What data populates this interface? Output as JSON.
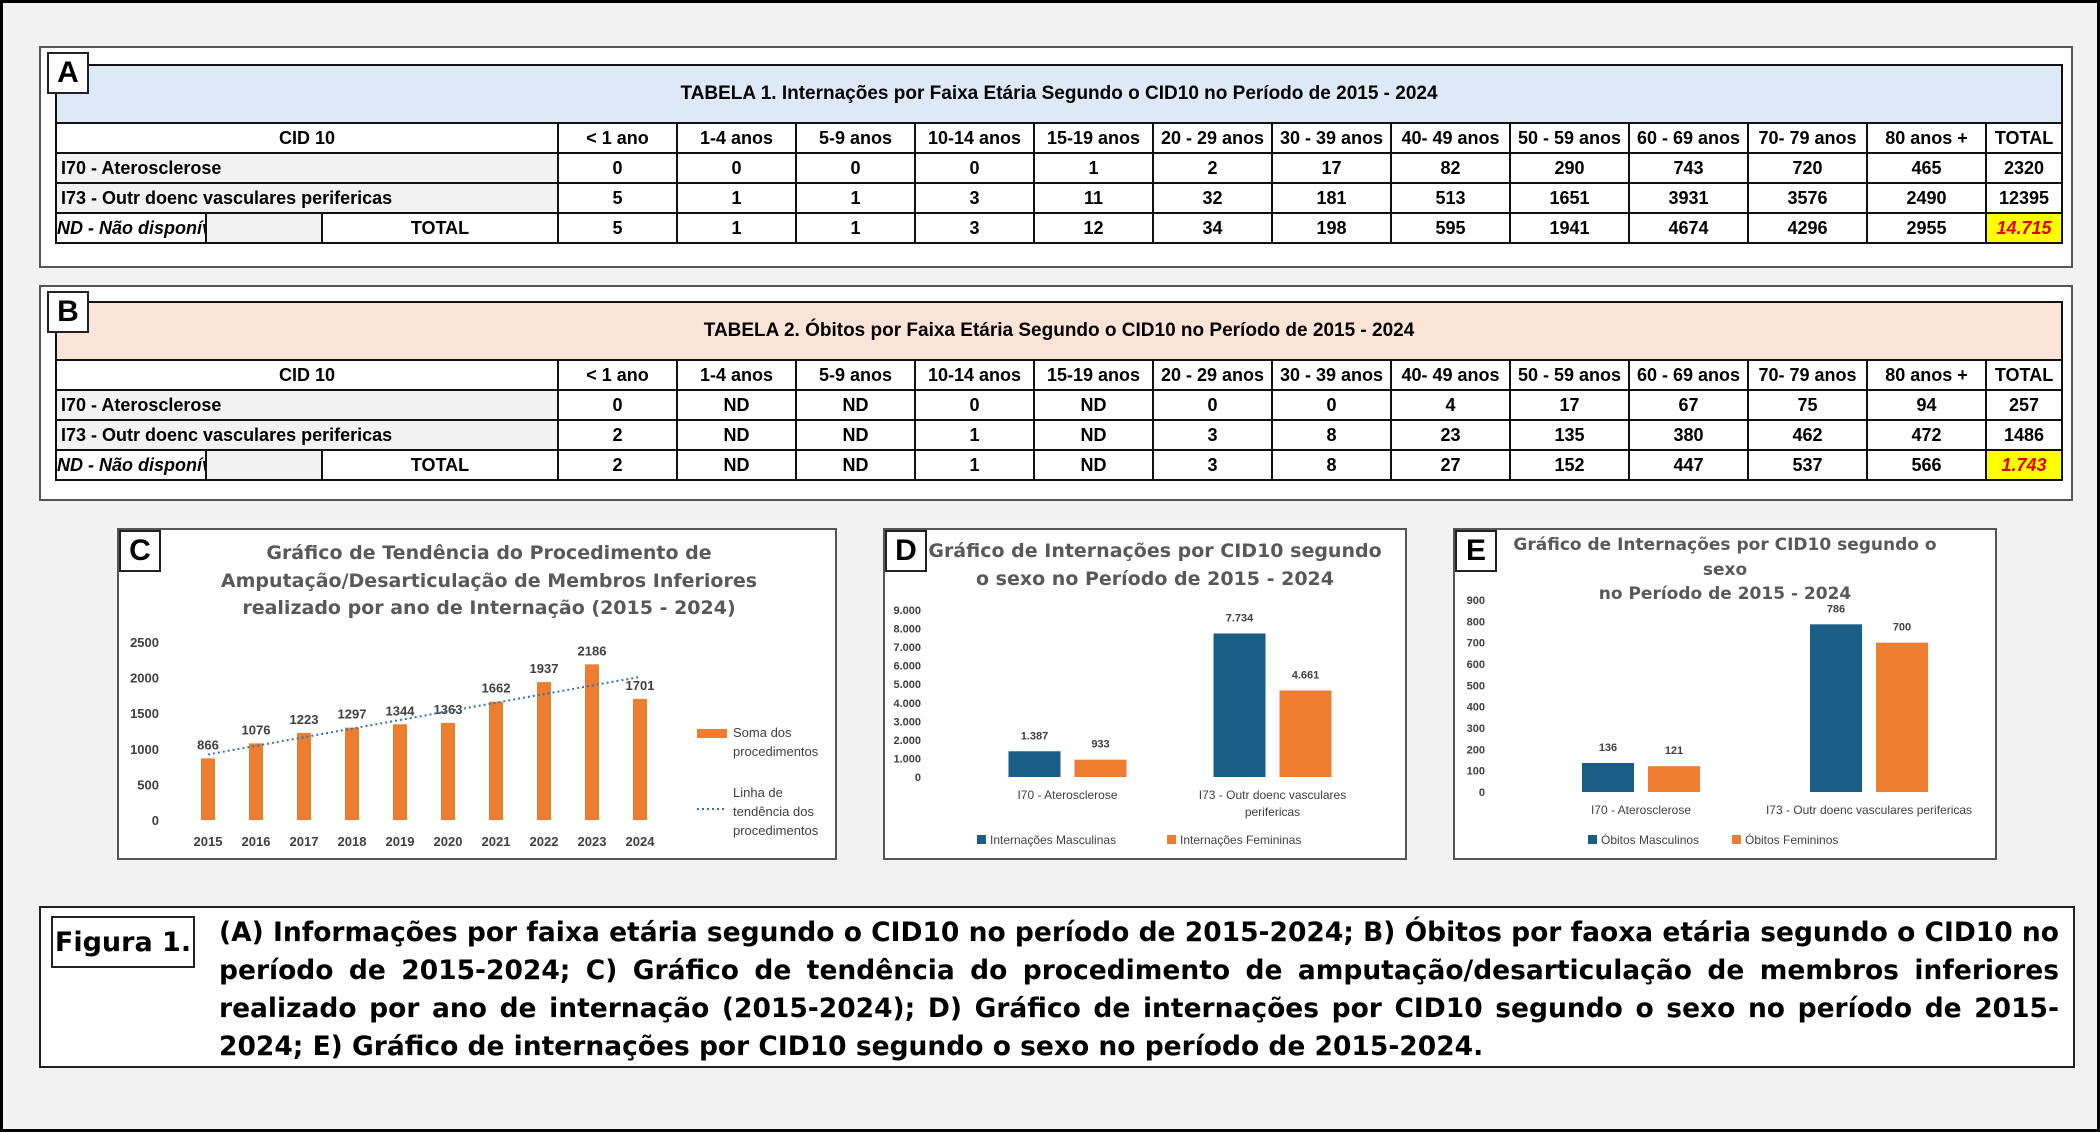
{
  "panels": {
    "a": "A",
    "b": "B",
    "c": "C",
    "d": "D",
    "e": "E"
  },
  "table1": {
    "title": "TABELA 1. Internações por Faixa Etária Segundo o CID10 no Período de 2015 - 2024",
    "header": [
      "CID 10",
      "< 1 ano",
      "1-4 anos",
      "5-9 anos",
      "10-14 anos",
      "15-19 anos",
      "20 - 29 anos",
      "30 - 39 anos",
      "40- 49 anos",
      "50 - 59 anos",
      "60 - 69 anos",
      "70- 79 anos",
      "80 anos +",
      "TOTAL"
    ],
    "rows": [
      [
        "I70 -  Aterosclerose",
        "0",
        "0",
        "0",
        "0",
        "1",
        "2",
        "17",
        "82",
        "290",
        "743",
        "720",
        "465",
        "2320"
      ],
      [
        "I73 - Outr doenc vasculares perifericas",
        "5",
        "1",
        "1",
        "3",
        "11",
        "32",
        "181",
        "513",
        "1651",
        "3931",
        "3576",
        "2490",
        "12395"
      ]
    ],
    "nd_label": "ND - Não disponível",
    "total_label": "TOTAL",
    "total_row": [
      "5",
      "1",
      "1",
      "3",
      "12",
      "34",
      "198",
      "595",
      "1941",
      "4674",
      "4296",
      "2955",
      "14.715"
    ]
  },
  "table2": {
    "title": "TABELA 2. Óbitos por Faixa Etária Segundo o CID10 no Período de 2015 - 2024",
    "header": [
      "CID 10",
      "< 1 ano",
      "1-4 anos",
      "5-9 anos",
      "10-14 anos",
      "15-19 anos",
      "20 - 29 anos",
      "30 - 39 anos",
      "40- 49 anos",
      "50 - 59 anos",
      "60 - 69 anos",
      "70- 79 anos",
      "80 anos +",
      "TOTAL"
    ],
    "rows": [
      [
        "I70 -  Aterosclerose",
        "0",
        "ND",
        "ND",
        "0",
        "ND",
        "0",
        "0",
        "4",
        "17",
        "67",
        "75",
        "94",
        "257"
      ],
      [
        "I73 - Outr doenc vasculares perifericas",
        "2",
        "ND",
        "ND",
        "1",
        "ND",
        "3",
        "8",
        "23",
        "135",
        "380",
        "462",
        "472",
        "1486"
      ]
    ],
    "nd_label": "ND - Não disponível",
    "total_label": "TOTAL",
    "total_row": [
      "2",
      "ND",
      "ND",
      "1",
      "ND",
      "3",
      "8",
      "27",
      "152",
      "447",
      "537",
      "566",
      "1.743"
    ]
  },
  "chart_data": [
    {
      "type": "bar",
      "title_lines": [
        "Gráfico de Tendência do Procedimento de",
        "Amputação/Desarticulação de Membros Inferiores",
        "realizado por ano de Internação (2015 - 2024)"
      ],
      "categories": [
        "2015",
        "2016",
        "2017",
        "2018",
        "2019",
        "2020",
        "2021",
        "2022",
        "2023",
        "2024"
      ],
      "series": [
        {
          "name": "Soma dos procedimentos",
          "values": [
            866,
            1076,
            1223,
            1297,
            1344,
            1363,
            1662,
            1937,
            2186,
            1701
          ],
          "color": "#ed7d31"
        }
      ],
      "trendline": {
        "name": "Linha de tendência dos procedimentos",
        "color": "#2e75b6",
        "style": "dotted"
      },
      "legend_lines": [
        [
          "Soma dos",
          "procedimentos"
        ],
        [
          "Linha de",
          "tendência dos",
          "procedimentos"
        ]
      ],
      "yticks": [
        "0",
        "500",
        "1000",
        "1500",
        "2000",
        "2500"
      ],
      "ylim": [
        0,
        2500
      ],
      "legend": "right"
    },
    {
      "type": "bar",
      "title_lines": [
        "Gráfico de Internações por CID10 segundo",
        "o sexo no Período de 2015 - 2024"
      ],
      "categories": [
        "I70 - Aterosclerose",
        "I73 - Outr doenc vasculares perifericas"
      ],
      "category_lines": [
        [
          "I70 - Aterosclerose"
        ],
        [
          "I73 - Outr doenc vasculares",
          "perifericas"
        ]
      ],
      "series": [
        {
          "name": "Internações Masculinas",
          "values": [
            1387,
            7734
          ],
          "labels": [
            "1.387",
            "7.734"
          ],
          "color": "#1b5e85"
        },
        {
          "name": "Internações Femininas",
          "values": [
            933,
            4661
          ],
          "labels": [
            "933",
            "4.661"
          ],
          "color": "#ed7d31"
        }
      ],
      "yticks": [
        "0",
        "1.000",
        "2.000",
        "3.000",
        "4.000",
        "5.000",
        "6.000",
        "7.000",
        "8.000",
        "9.000"
      ],
      "ylim": [
        0,
        9000
      ],
      "legend": "bottom"
    },
    {
      "type": "bar",
      "title_lines": [
        "Gráfico de Internações por CID10 segundo o sexo",
        "no Período de 2015 - 2024"
      ],
      "categories": [
        "I70 - Aterosclerose",
        "I73 - Outr doenc vasculares perifericas"
      ],
      "category_lines": [
        [
          "I70 - Aterosclerose"
        ],
        [
          "I73 - Outr doenc vasculares perifericas"
        ]
      ],
      "series": [
        {
          "name": "Óbitos Masculinos",
          "values": [
            136,
            786
          ],
          "labels": [
            "136",
            "786"
          ],
          "color": "#1b5e85"
        },
        {
          "name": "Óbitos Femininos",
          "values": [
            121,
            700
          ],
          "labels": [
            "121",
            "700"
          ],
          "color": "#ed7d31"
        }
      ],
      "yticks": [
        "0",
        "100",
        "200",
        "300",
        "400",
        "500",
        "600",
        "700",
        "800",
        "900"
      ],
      "ylim": [
        0,
        900
      ],
      "legend": "bottom"
    }
  ],
  "caption": {
    "label": "Figura 1.",
    "text": "(A) Informações por faixa etária segundo o CID10 no período de 2015-2024; B) Óbitos por faoxa etária segundo o CID10 no período  de 2015-2024; C) Gráfico de tendência do procedimento de amputação/desarticulação de membros inferiores realizado por ano de internação (2015-2024); D) Gráfico de internações por CID10 segundo o sexo no período de 2015-2024; E) Gráfico de internações por CID10 segundo  o sexo no período de 2015-2024."
  }
}
